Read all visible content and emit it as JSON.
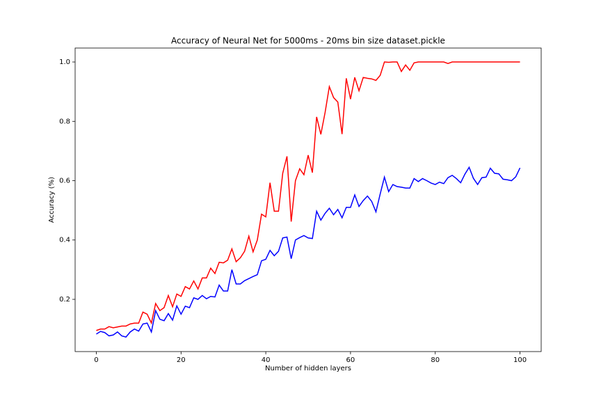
{
  "chart_data": {
    "type": "line",
    "title": "Accuracy of Neural Net for 5000ms - 20ms bin size dataset.pickle",
    "xlabel": "Number of hidden layers",
    "ylabel": "Accuracy (%)",
    "x": [
      0,
      1,
      2,
      3,
      4,
      5,
      6,
      7,
      8,
      9,
      10,
      11,
      12,
      13,
      14,
      15,
      16,
      17,
      18,
      19,
      20,
      21,
      22,
      23,
      24,
      25,
      26,
      27,
      28,
      29,
      30,
      31,
      32,
      33,
      34,
      35,
      36,
      37,
      38,
      39,
      40,
      41,
      42,
      43,
      44,
      45,
      46,
      47,
      48,
      49,
      50,
      51,
      52,
      53,
      54,
      55,
      56,
      57,
      58,
      59,
      60,
      61,
      62,
      63,
      64,
      65,
      66,
      67,
      68,
      69,
      70,
      71,
      72,
      73,
      74,
      75,
      76,
      77,
      78,
      79,
      80,
      81,
      82,
      83,
      84,
      85,
      86,
      87,
      88,
      89,
      90,
      91,
      92,
      93,
      94,
      95,
      96,
      97,
      98,
      99,
      100
    ],
    "series": [
      {
        "color": "#ff0000",
        "values": [
          0.095,
          0.1,
          0.1,
          0.108,
          0.104,
          0.107,
          0.11,
          0.11,
          0.117,
          0.12,
          0.12,
          0.157,
          0.15,
          0.12,
          0.186,
          0.162,
          0.172,
          0.213,
          0.175,
          0.218,
          0.21,
          0.243,
          0.235,
          0.262,
          0.235,
          0.272,
          0.272,
          0.305,
          0.287,
          0.325,
          0.323,
          0.332,
          0.37,
          0.327,
          0.34,
          0.362,
          0.413,
          0.36,
          0.4,
          0.487,
          0.478,
          0.593,
          0.497,
          0.497,
          0.625,
          0.682,
          0.462,
          0.6,
          0.64,
          0.62,
          0.686,
          0.627,
          0.815,
          0.756,
          0.83,
          0.917,
          0.88,
          0.865,
          0.757,
          0.945,
          0.875,
          0.948,
          0.903,
          0.948,
          0.945,
          0.943,
          0.938,
          0.955,
          1.0,
          0.999,
          1.0,
          1.0,
          0.968,
          0.99,
          0.972,
          0.997,
          1.0,
          1.0,
          1.0,
          1.0,
          1.0,
          1.0,
          1.0,
          0.995,
          1.0,
          1.0,
          1.0,
          1.0,
          1.0,
          1.0,
          1.0,
          1.0,
          1.0,
          1.0,
          1.0,
          1.0,
          1.0,
          1.0,
          1.0,
          1.0,
          1.0
        ]
      },
      {
        "color": "#0000ff",
        "values": [
          0.083,
          0.092,
          0.088,
          0.077,
          0.08,
          0.09,
          0.077,
          0.073,
          0.09,
          0.1,
          0.093,
          0.117,
          0.12,
          0.09,
          0.162,
          0.133,
          0.128,
          0.152,
          0.13,
          0.178,
          0.15,
          0.177,
          0.172,
          0.205,
          0.2,
          0.213,
          0.202,
          0.21,
          0.208,
          0.248,
          0.228,
          0.228,
          0.3,
          0.252,
          0.252,
          0.263,
          0.27,
          0.277,
          0.283,
          0.33,
          0.335,
          0.365,
          0.347,
          0.362,
          0.407,
          0.41,
          0.337,
          0.4,
          0.408,
          0.415,
          0.407,
          0.405,
          0.497,
          0.467,
          0.49,
          0.507,
          0.485,
          0.503,
          0.475,
          0.51,
          0.51,
          0.552,
          0.513,
          0.533,
          0.548,
          0.53,
          0.495,
          0.555,
          0.612,
          0.563,
          0.587,
          0.58,
          0.578,
          0.575,
          0.575,
          0.607,
          0.597,
          0.607,
          0.6,
          0.592,
          0.587,
          0.595,
          0.59,
          0.61,
          0.618,
          0.607,
          0.593,
          0.622,
          0.645,
          0.608,
          0.587,
          0.61,
          0.612,
          0.642,
          0.625,
          0.623,
          0.605,
          0.603,
          0.6,
          0.613,
          0.643
        ]
      }
    ],
    "xlim": [
      -5,
      105
    ],
    "ylim": [
      0.024,
      1.047
    ],
    "xticks": [
      0,
      20,
      40,
      60,
      80,
      100
    ],
    "yticks": [
      0.2,
      0.4,
      0.6,
      0.8,
      {
        "value": 1.0,
        "label": "1.0"
      }
    ]
  }
}
